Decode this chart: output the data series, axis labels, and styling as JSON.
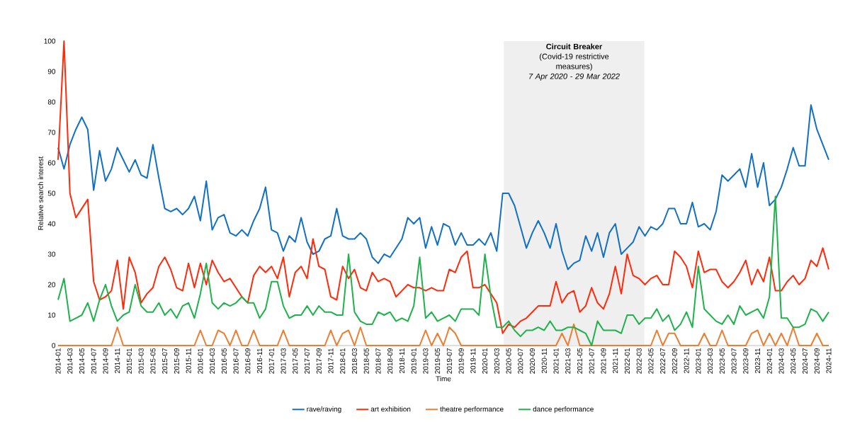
{
  "chart_data": {
    "type": "line",
    "xlabel": "Time",
    "ylabel": "Relative search interest",
    "x": [
      "2014-01",
      "2014-02",
      "2014-03",
      "2014-04",
      "2014-05",
      "2014-06",
      "2014-07",
      "2014-08",
      "2014-09",
      "2014-10",
      "2014-11",
      "2014-12",
      "2015-01",
      "2015-02",
      "2015-03",
      "2015-04",
      "2015-05",
      "2015-06",
      "2015-07",
      "2015-08",
      "2015-09",
      "2015-10",
      "2015-11",
      "2015-12",
      "2016-01",
      "2016-02",
      "2016-03",
      "2016-04",
      "2016-05",
      "2016-06",
      "2016-07",
      "2016-08",
      "2016-09",
      "2016-10",
      "2016-11",
      "2016-12",
      "2017-01",
      "2017-02",
      "2017-03",
      "2017-04",
      "2017-05",
      "2017-06",
      "2017-07",
      "2017-08",
      "2017-09",
      "2017-10",
      "2017-11",
      "2017-12",
      "2018-01",
      "2018-02",
      "2018-03",
      "2018-04",
      "2018-05",
      "2018-06",
      "2018-07",
      "2018-08",
      "2018-09",
      "2018-10",
      "2018-11",
      "2018-12",
      "2019-01",
      "2019-02",
      "2019-03",
      "2019-04",
      "2019-05",
      "2019-06",
      "2019-07",
      "2019-08",
      "2019-09",
      "2019-10",
      "2019-11",
      "2019-12",
      "2020-01",
      "2020-02",
      "2020-03",
      "2020-04",
      "2020-05",
      "2020-06",
      "2020-07",
      "2020-08",
      "2020-09",
      "2020-10",
      "2020-11",
      "2020-12",
      "2021-01",
      "2021-02",
      "2021-03",
      "2021-04",
      "2021-05",
      "2021-06",
      "2021-07",
      "2021-08",
      "2021-09",
      "2021-10",
      "2021-11",
      "2021-12",
      "2022-01",
      "2022-02",
      "2022-03",
      "2022-04",
      "2022-05",
      "2022-06",
      "2022-07",
      "2022-08",
      "2022-09",
      "2022-10",
      "2022-11",
      "2022-12",
      "2023-01",
      "2023-02",
      "2023-03",
      "2023-04",
      "2023-05",
      "2023-06",
      "2023-07",
      "2023-08",
      "2023-09",
      "2023-10",
      "2023-11",
      "2023-12",
      "2024-01",
      "2024-02",
      "2024-03",
      "2024-04",
      "2024-05",
      "2024-06",
      "2024-07",
      "2024-08",
      "2024-09",
      "2024-10",
      "2024-11"
    ],
    "series": [
      {
        "name": "rave/raving",
        "color": "#1170c4",
        "values": [
          65,
          58,
          66,
          71,
          75,
          71,
          51,
          64,
          54,
          58,
          65,
          61,
          57,
          61,
          56,
          55,
          66,
          55,
          45,
          44,
          45,
          43,
          45,
          49,
          41,
          54,
          38,
          42,
          43,
          37,
          36,
          38,
          36,
          41,
          45,
          52,
          38,
          37,
          31,
          36,
          34,
          42,
          34,
          30,
          31,
          35,
          36,
          45,
          36,
          35,
          35,
          37,
          35,
          29,
          27,
          30,
          29,
          32,
          35,
          42,
          40,
          42,
          32,
          39,
          33,
          40,
          39,
          33,
          37,
          33,
          33,
          35,
          33,
          37,
          31,
          50,
          50,
          46,
          39,
          32,
          37,
          41,
          37,
          32,
          40,
          31,
          25,
          27,
          28,
          36,
          31,
          37,
          29,
          37,
          40,
          30,
          32,
          34,
          39,
          36,
          39,
          38,
          40,
          45,
          45,
          40,
          40,
          47,
          39,
          40,
          38,
          44,
          56,
          54,
          56,
          58,
          52,
          63,
          52,
          60,
          46,
          48,
          52,
          58,
          65,
          59,
          59,
          79,
          71,
          66,
          61
        ]
      },
      {
        "name": "art exhibition",
        "color": "#ff2a0a",
        "values": [
          61,
          100,
          50,
          42,
          45,
          48,
          21,
          15,
          16,
          18,
          28,
          12,
          29,
          24,
          14,
          17,
          19,
          26,
          29,
          25,
          19,
          18,
          27,
          19,
          27,
          20,
          28,
          24,
          21,
          22,
          19,
          16,
          14,
          23,
          26,
          24,
          26,
          22,
          29,
          16,
          24,
          26,
          22,
          35,
          26,
          25,
          16,
          15,
          26,
          22,
          25,
          19,
          18,
          24,
          21,
          22,
          21,
          16,
          18,
          20,
          19,
          19,
          18,
          19,
          18,
          18,
          25,
          24,
          29,
          31,
          19,
          19,
          20,
          17,
          14,
          4,
          7,
          6,
          8,
          9,
          11,
          13,
          13,
          13,
          21,
          14,
          17,
          18,
          11,
          13,
          19,
          14,
          12,
          17,
          26,
          17,
          30,
          23,
          22,
          20,
          22,
          23,
          20,
          20,
          31,
          29,
          26,
          19,
          31,
          24,
          25,
          25,
          21,
          19,
          21,
          24,
          28,
          20,
          25,
          21,
          29,
          18,
          18,
          21,
          23,
          20,
          22,
          28,
          26,
          32,
          25
        ]
      },
      {
        "name": "theatre performance",
        "color": "#ed7d31",
        "values": [
          0,
          0,
          0,
          0,
          0,
          0,
          0,
          0,
          0,
          0,
          6,
          0,
          0,
          0,
          0,
          0,
          0,
          0,
          0,
          0,
          0,
          0,
          0,
          0,
          5,
          0,
          0,
          5,
          4,
          0,
          5,
          0,
          0,
          5,
          0,
          0,
          0,
          0,
          5,
          0,
          0,
          0,
          0,
          0,
          0,
          0,
          5,
          0,
          4,
          5,
          0,
          6,
          0,
          0,
          0,
          0,
          0,
          0,
          0,
          0,
          0,
          0,
          5,
          0,
          4,
          0,
          6,
          4,
          0,
          0,
          0,
          0,
          0,
          0,
          0,
          0,
          0,
          0,
          0,
          0,
          0,
          0,
          0,
          0,
          0,
          4,
          0,
          7,
          0,
          0,
          0,
          0,
          0,
          0,
          0,
          0,
          0,
          0,
          0,
          0,
          0,
          5,
          0,
          4,
          4,
          0,
          0,
          0,
          0,
          4,
          0,
          0,
          5,
          0,
          0,
          0,
          0,
          4,
          5,
          0,
          4,
          0,
          4,
          0,
          6,
          0,
          0,
          0,
          4,
          0,
          0
        ]
      },
      {
        "name": "dance performance",
        "color": "#1db24a",
        "values": [
          15,
          22,
          8,
          9,
          10,
          14,
          8,
          15,
          20,
          13,
          8,
          10,
          11,
          20,
          13,
          11,
          11,
          14,
          10,
          12,
          9,
          13,
          14,
          9,
          17,
          27,
          14,
          12,
          14,
          13,
          14,
          16,
          14,
          14,
          9,
          12,
          21,
          21,
          13,
          9,
          10,
          10,
          13,
          10,
          13,
          11,
          11,
          10,
          10,
          30,
          11,
          8,
          7,
          7,
          11,
          10,
          11,
          8,
          9,
          8,
          13,
          29,
          9,
          11,
          8,
          9,
          10,
          8,
          12,
          12,
          12,
          10,
          30,
          16,
          6,
          6,
          8,
          5,
          3,
          5,
          5,
          6,
          5,
          8,
          5,
          5,
          6,
          6,
          5,
          4,
          0,
          8,
          5,
          5,
          5,
          4,
          10,
          10,
          7,
          9,
          9,
          12,
          8,
          10,
          5,
          7,
          11,
          6,
          26,
          12,
          10,
          8,
          7,
          10,
          7,
          13,
          10,
          11,
          12,
          9,
          16,
          49,
          9,
          9,
          6,
          6,
          7,
          12,
          11,
          8,
          11
        ]
      }
    ],
    "xlim": [
      "2014-01",
      "2024-11"
    ],
    "xticks": [
      "2014-01",
      "2014-03",
      "2014-05",
      "2014-07",
      "2014-09",
      "2014-11",
      "2015-01",
      "2015-03",
      "2015-05",
      "2015-07",
      "2015-09",
      "2015-11",
      "2016-01",
      "2016-03",
      "2016-05",
      "2016-07",
      "2016-09",
      "2016-11",
      "2017-01",
      "2017-03",
      "2017-05",
      "2017-07",
      "2017-09",
      "2017-11",
      "2018-01",
      "2018-03",
      "2018-05",
      "2018-07",
      "2018-09",
      "2018-11",
      "2019-01",
      "2019-03",
      "2019-05",
      "2019-07",
      "2019-09",
      "2019-11",
      "2020-01",
      "2020-03",
      "2020-05",
      "2020-07",
      "2020-09",
      "2020-11",
      "2021-01",
      "2021-03",
      "2021-05",
      "2021-07",
      "2021-09",
      "2021-11",
      "2022-01",
      "2022-03",
      "2022-05",
      "2022-07",
      "2022-09",
      "2022-11",
      "2023-01",
      "2023-03",
      "2023-05",
      "2023-07",
      "2023-09",
      "2023-11",
      "2024-01",
      "2024-03",
      "2024-05",
      "2024-07",
      "2024-09",
      "2024-11"
    ],
    "ylim": [
      0,
      100
    ],
    "yticks": [
      0,
      10,
      20,
      30,
      40,
      50,
      60,
      70,
      80,
      90,
      100
    ],
    "bands": [
      {
        "axis": "x",
        "from": "2020-04-07",
        "to": "2022-03-29",
        "label": "Circuit Breaker",
        "color": "#efefef"
      }
    ],
    "annotations": [
      "(Covid-19 restrictive measures)",
      "7 Apr 2020 - 29 Mar 2022"
    ],
    "legend": "bottom"
  }
}
